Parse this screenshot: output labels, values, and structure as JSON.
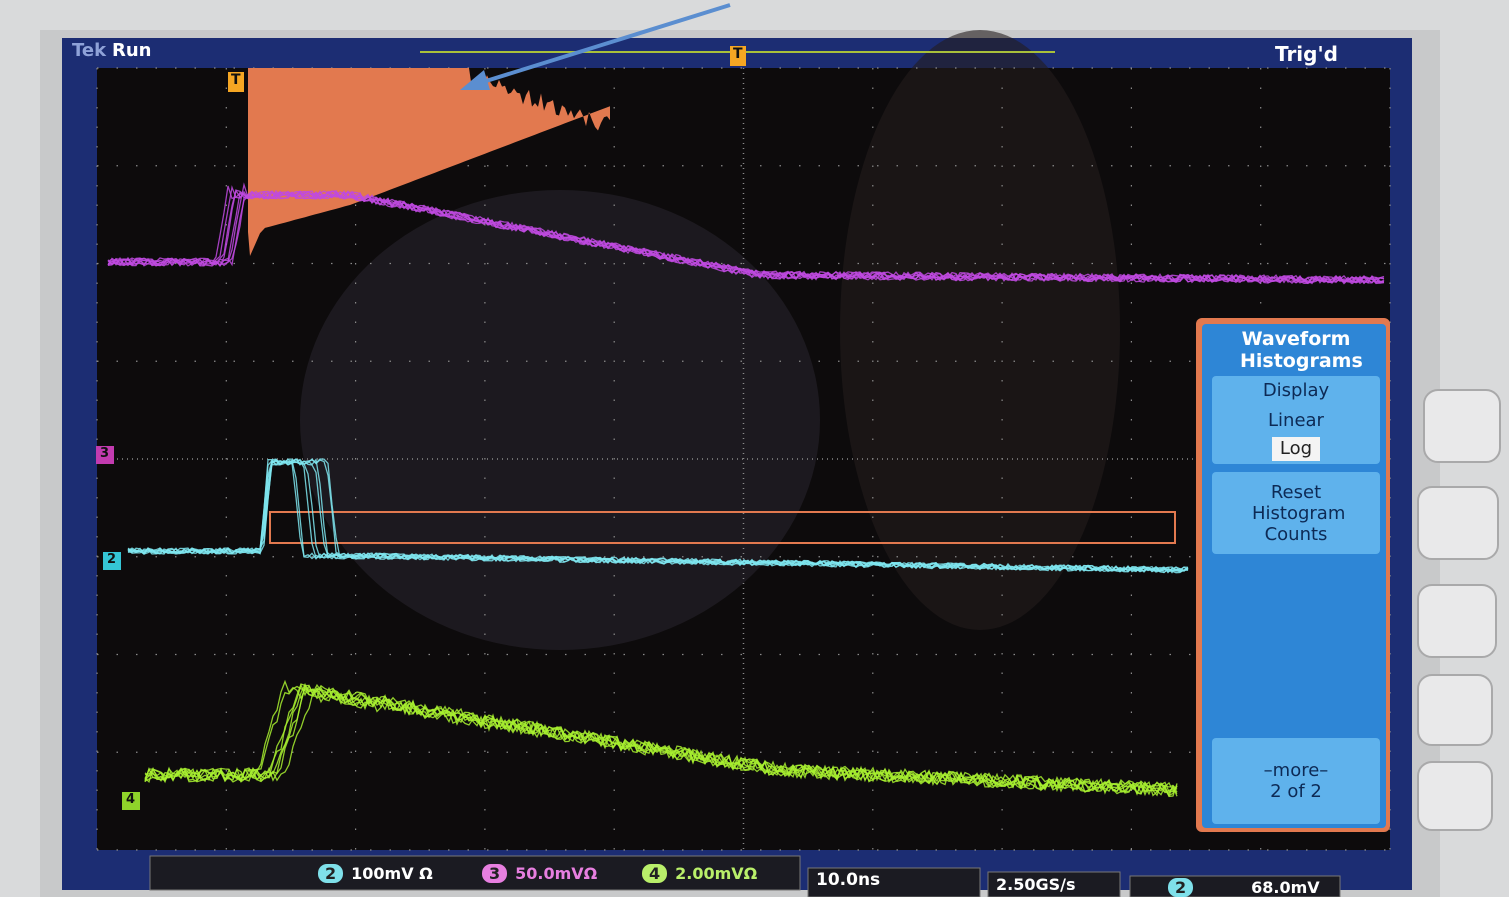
{
  "header": {
    "brand": "Tek",
    "state": "Run",
    "trigger_status": "Trig'd"
  },
  "markers": {
    "trigger_top": "T",
    "trigger_pos": "T",
    "channels": [
      "3",
      "2",
      "4"
    ]
  },
  "menu": {
    "title": "Waveform Histograms",
    "display_label": "Display",
    "options": [
      "Linear",
      "Log"
    ],
    "reset": "Reset Histogram Counts",
    "more": "–more–",
    "page": "2 of 2"
  },
  "status": {
    "channels": [
      {
        "id": "2",
        "scale": "100mV Ω"
      },
      {
        "id": "3",
        "scale": "50.0mVΩ"
      },
      {
        "id": "4",
        "scale": "2.00mVΩ"
      }
    ],
    "timebase": "10.0ns",
    "sample_rate": "2.50GS/s",
    "trigger_source": "2",
    "trigger_level": "68.0mV"
  }
}
